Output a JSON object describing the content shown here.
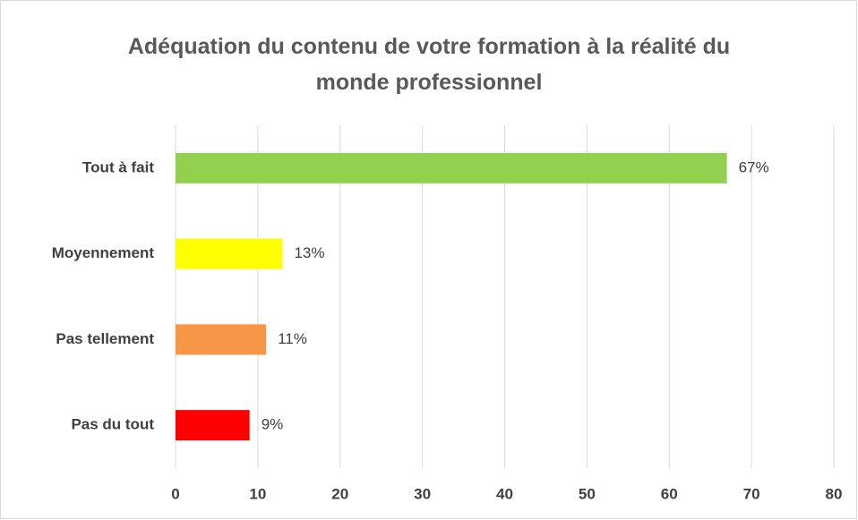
{
  "chart_data": {
    "type": "bar",
    "orientation": "horizontal",
    "title": "Adéquation du contenu de votre formation à la réalité du monde professionnel",
    "categories": [
      "Tout à fait",
      "Moyennement",
      "Pas tellement",
      "Pas du tout"
    ],
    "values": [
      67,
      13,
      11,
      9
    ],
    "value_labels": [
      "67%",
      "13%",
      "11%",
      "9%"
    ],
    "colors": [
      "#92d050",
      "#ffff00",
      "#f79646",
      "#ff0000"
    ],
    "xlim": [
      0,
      80
    ],
    "xticks": [
      0,
      10,
      20,
      30,
      40,
      50,
      60,
      70,
      80
    ],
    "grid": true
  }
}
